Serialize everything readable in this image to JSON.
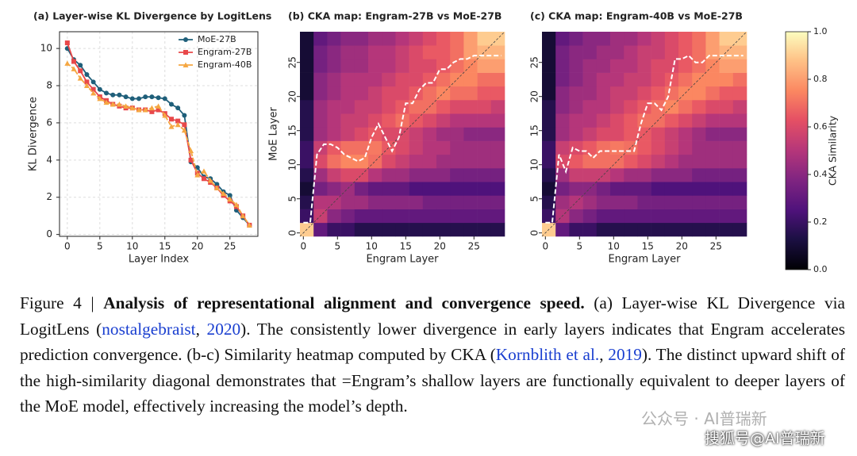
{
  "chart_data": [
    {
      "type": "line",
      "title": "(a) Layer-wise KL Divergence by LogitLens",
      "xlabel": "Layer Index",
      "ylabel": "KL Divergence",
      "x": [
        0,
        1,
        2,
        3,
        4,
        5,
        6,
        7,
        8,
        9,
        10,
        11,
        12,
        13,
        14,
        15,
        16,
        17,
        18,
        19,
        20,
        21,
        22,
        23,
        24,
        25,
        26,
        27,
        28
      ],
      "series": [
        {
          "name": "MoE-27B",
          "color": "#1f5f7a",
          "marker": "circle",
          "values": [
            10.0,
            9.4,
            9.1,
            8.6,
            8.2,
            7.8,
            7.6,
            7.5,
            7.5,
            7.4,
            7.3,
            7.3,
            7.4,
            7.4,
            7.35,
            7.3,
            7.0,
            6.8,
            6.4,
            3.9,
            3.6,
            3.1,
            3.0,
            2.7,
            2.3,
            2.1,
            1.3,
            0.9,
            0.5
          ]
        },
        {
          "name": "Engram-27B",
          "color": "#e8484a",
          "marker": "square",
          "values": [
            10.3,
            9.3,
            8.8,
            8.2,
            7.8,
            7.4,
            7.2,
            7.0,
            6.9,
            6.8,
            6.8,
            6.7,
            6.7,
            6.6,
            6.7,
            6.5,
            6.2,
            6.1,
            5.9,
            4.0,
            3.3,
            3.0,
            2.8,
            2.5,
            2.1,
            1.8,
            1.5,
            1.0,
            0.5
          ]
        },
        {
          "name": "Engram-40B",
          "color": "#f5a742",
          "marker": "triangle",
          "values": [
            9.2,
            8.9,
            8.4,
            8.0,
            7.6,
            7.3,
            7.1,
            7.0,
            7.0,
            6.9,
            6.8,
            6.7,
            6.7,
            6.8,
            6.9,
            6.4,
            5.8,
            5.9,
            5.6,
            4.5,
            3.2,
            3.4,
            2.9,
            2.5,
            2.2,
            1.9,
            1.6,
            1.0,
            0.5
          ]
        }
      ],
      "xlim": [
        -1.2,
        29.3
      ],
      "xticks": [
        0,
        5,
        10,
        15,
        20,
        25
      ],
      "ylim": [
        -0.1,
        10.9
      ],
      "yticks": [
        0,
        2,
        4,
        6,
        8,
        10
      ],
      "grid": true,
      "legend": "upper-right"
    },
    {
      "type": "heatmap",
      "title": "(b) CKA map: Engram-27B vs MoE-27B",
      "xlabel": "Engram Layer",
      "ylabel": "MoE Layer",
      "colormap": "magma",
      "clim": [
        0,
        1
      ],
      "xbins": [
        -0.5,
        1.5,
        3.5,
        5.5,
        7.5,
        9.5,
        11.5,
        13.5,
        15.5,
        17.5,
        19.5,
        21.5,
        23.5,
        25.5,
        27.5,
        29.5
      ],
      "ybins": [
        -0.5,
        1.5,
        3.5,
        5.5,
        7.5,
        9.5,
        11.5,
        13.5,
        15.5,
        17.5,
        19.5,
        21.5,
        23.5,
        25.5,
        27.5,
        29.5
      ],
      "z": [
        [
          0.9,
          0.3,
          0.2,
          0.2,
          0.15,
          0.15,
          0.15,
          0.15,
          0.15,
          0.15,
          0.15,
          0.15,
          0.15,
          0.15,
          0.15
        ],
        [
          0.2,
          0.55,
          0.4,
          0.35,
          0.3,
          0.3,
          0.3,
          0.3,
          0.3,
          0.3,
          0.3,
          0.3,
          0.3,
          0.3,
          0.3
        ],
        [
          0.15,
          0.5,
          0.5,
          0.45,
          0.45,
          0.4,
          0.4,
          0.4,
          0.4,
          0.35,
          0.35,
          0.35,
          0.35,
          0.35,
          0.35
        ],
        [
          0.1,
          0.35,
          0.4,
          0.45,
          0.35,
          0.3,
          0.3,
          0.3,
          0.25,
          0.25,
          0.25,
          0.25,
          0.25,
          0.25,
          0.25
        ],
        [
          0.15,
          0.45,
          0.55,
          0.6,
          0.6,
          0.5,
          0.45,
          0.45,
          0.4,
          0.4,
          0.4,
          0.35,
          0.35,
          0.35,
          0.35
        ],
        [
          0.2,
          0.6,
          0.7,
          0.75,
          0.75,
          0.7,
          0.6,
          0.55,
          0.5,
          0.5,
          0.45,
          0.45,
          0.45,
          0.45,
          0.45
        ],
        [
          0.2,
          0.55,
          0.65,
          0.7,
          0.7,
          0.72,
          0.65,
          0.6,
          0.55,
          0.5,
          0.5,
          0.45,
          0.45,
          0.45,
          0.45
        ],
        [
          0.15,
          0.45,
          0.5,
          0.55,
          0.6,
          0.65,
          0.6,
          0.6,
          0.55,
          0.5,
          0.45,
          0.45,
          0.4,
          0.4,
          0.4
        ],
        [
          0.15,
          0.45,
          0.5,
          0.55,
          0.55,
          0.6,
          0.65,
          0.7,
          0.65,
          0.6,
          0.55,
          0.5,
          0.5,
          0.5,
          0.5
        ],
        [
          0.15,
          0.45,
          0.5,
          0.5,
          0.55,
          0.55,
          0.6,
          0.65,
          0.7,
          0.7,
          0.65,
          0.6,
          0.6,
          0.6,
          0.55
        ],
        [
          0.1,
          0.4,
          0.45,
          0.5,
          0.5,
          0.55,
          0.6,
          0.6,
          0.65,
          0.7,
          0.75,
          0.7,
          0.7,
          0.65,
          0.65
        ],
        [
          0.1,
          0.4,
          0.45,
          0.5,
          0.5,
          0.5,
          0.55,
          0.6,
          0.6,
          0.65,
          0.7,
          0.75,
          0.75,
          0.7,
          0.7
        ],
        [
          0.1,
          0.35,
          0.4,
          0.45,
          0.45,
          0.5,
          0.5,
          0.55,
          0.6,
          0.6,
          0.65,
          0.7,
          0.75,
          0.8,
          0.8
        ],
        [
          0.1,
          0.35,
          0.4,
          0.45,
          0.45,
          0.5,
          0.5,
          0.55,
          0.6,
          0.65,
          0.65,
          0.7,
          0.8,
          0.85,
          0.85
        ],
        [
          0.1,
          0.3,
          0.35,
          0.4,
          0.4,
          0.45,
          0.45,
          0.5,
          0.55,
          0.6,
          0.65,
          0.7,
          0.8,
          0.9,
          0.9
        ]
      ],
      "overlay": {
        "x": [
          0,
          1,
          2,
          3,
          4,
          5,
          6,
          7,
          8,
          9,
          10,
          11,
          12,
          13,
          14,
          15,
          16,
          17,
          18,
          19,
          20,
          21,
          22,
          23,
          24,
          25,
          26,
          27,
          28,
          29
        ],
        "values": [
          1.5,
          1.5,
          11.5,
          13,
          13,
          12.5,
          11.5,
          11,
          10.5,
          11,
          14,
          16,
          14,
          12,
          14,
          19,
          19,
          21,
          22,
          22,
          24,
          24,
          25,
          25.5,
          25.5,
          26,
          26,
          26,
          26,
          26
        ]
      },
      "xlim": [
        -0.5,
        29.5
      ],
      "xticks": [
        0,
        5,
        10,
        15,
        20,
        25
      ],
      "ylim": [
        -0.5,
        29.5
      ],
      "yticks": [
        0,
        5,
        10,
        15,
        20,
        25
      ]
    },
    {
      "type": "heatmap",
      "title": "(c) CKA map: Engram-40B vs MoE-27B",
      "xlabel": "Engram Layer",
      "colormap": "magma",
      "clim": [
        0,
        1
      ],
      "xbins": [
        -0.5,
        1.5,
        3.5,
        5.5,
        7.5,
        9.5,
        11.5,
        13.5,
        15.5,
        17.5,
        19.5,
        21.5,
        23.5,
        25.5,
        27.5,
        29.5
      ],
      "ybins": [
        -0.5,
        1.5,
        3.5,
        5.5,
        7.5,
        9.5,
        11.5,
        13.5,
        15.5,
        17.5,
        19.5,
        21.5,
        23.5,
        25.5,
        27.5,
        29.5
      ],
      "z": [
        [
          0.9,
          0.3,
          0.2,
          0.2,
          0.15,
          0.15,
          0.15,
          0.15,
          0.15,
          0.15,
          0.15,
          0.15,
          0.15,
          0.15,
          0.15
        ],
        [
          0.2,
          0.5,
          0.4,
          0.35,
          0.3,
          0.3,
          0.3,
          0.3,
          0.3,
          0.3,
          0.3,
          0.3,
          0.3,
          0.3,
          0.3
        ],
        [
          0.15,
          0.45,
          0.5,
          0.45,
          0.4,
          0.4,
          0.4,
          0.35,
          0.35,
          0.35,
          0.35,
          0.35,
          0.35,
          0.35,
          0.35
        ],
        [
          0.1,
          0.35,
          0.4,
          0.4,
          0.35,
          0.3,
          0.3,
          0.3,
          0.25,
          0.25,
          0.25,
          0.25,
          0.25,
          0.25,
          0.25
        ],
        [
          0.15,
          0.45,
          0.55,
          0.55,
          0.55,
          0.5,
          0.45,
          0.45,
          0.4,
          0.4,
          0.4,
          0.35,
          0.35,
          0.35,
          0.35
        ],
        [
          0.2,
          0.6,
          0.65,
          0.7,
          0.7,
          0.7,
          0.65,
          0.6,
          0.55,
          0.5,
          0.45,
          0.45,
          0.45,
          0.45,
          0.45
        ],
        [
          0.2,
          0.55,
          0.6,
          0.65,
          0.7,
          0.72,
          0.7,
          0.65,
          0.6,
          0.55,
          0.5,
          0.45,
          0.45,
          0.45,
          0.45
        ],
        [
          0.15,
          0.45,
          0.5,
          0.55,
          0.6,
          0.6,
          0.65,
          0.65,
          0.6,
          0.55,
          0.5,
          0.45,
          0.4,
          0.4,
          0.4
        ],
        [
          0.15,
          0.45,
          0.5,
          0.5,
          0.55,
          0.6,
          0.65,
          0.7,
          0.7,
          0.65,
          0.6,
          0.55,
          0.5,
          0.5,
          0.5
        ],
        [
          0.15,
          0.4,
          0.45,
          0.5,
          0.5,
          0.55,
          0.6,
          0.65,
          0.7,
          0.75,
          0.7,
          0.65,
          0.6,
          0.6,
          0.55
        ],
        [
          0.1,
          0.4,
          0.45,
          0.45,
          0.5,
          0.55,
          0.55,
          0.6,
          0.65,
          0.7,
          0.75,
          0.75,
          0.7,
          0.65,
          0.65
        ],
        [
          0.1,
          0.35,
          0.4,
          0.45,
          0.5,
          0.5,
          0.55,
          0.55,
          0.6,
          0.65,
          0.7,
          0.75,
          0.75,
          0.75,
          0.7
        ],
        [
          0.1,
          0.35,
          0.4,
          0.45,
          0.45,
          0.5,
          0.5,
          0.55,
          0.6,
          0.6,
          0.65,
          0.7,
          0.75,
          0.8,
          0.8
        ],
        [
          0.1,
          0.35,
          0.4,
          0.4,
          0.45,
          0.45,
          0.5,
          0.55,
          0.55,
          0.6,
          0.65,
          0.7,
          0.8,
          0.85,
          0.85
        ],
        [
          0.1,
          0.3,
          0.35,
          0.4,
          0.4,
          0.45,
          0.45,
          0.5,
          0.55,
          0.6,
          0.65,
          0.7,
          0.8,
          0.9,
          0.9
        ]
      ],
      "overlay": {
        "x": [
          0,
          1,
          2,
          3,
          4,
          5,
          6,
          7,
          8,
          9,
          10,
          11,
          12,
          13,
          14,
          15,
          16,
          17,
          18,
          19,
          20,
          21,
          22,
          23,
          24,
          25,
          26,
          27,
          28,
          29
        ],
        "values": [
          1.5,
          1.5,
          11.5,
          9,
          12.5,
          12,
          12,
          11,
          12,
          12,
          12,
          12,
          12,
          12,
          16,
          19,
          19,
          18,
          20,
          25.5,
          25.5,
          26,
          25,
          25,
          26,
          26,
          26,
          26,
          26,
          26
        ]
      },
      "xlim": [
        -0.5,
        29.5
      ],
      "xticks": [
        0,
        5,
        10,
        15,
        20,
        25
      ],
      "ylim": [
        -0.5,
        29.5
      ],
      "yticks": [
        0,
        5,
        10,
        15,
        20,
        25
      ],
      "colorbar": {
        "label": "CKA Similarity",
        "ticks": [
          {
            "value": 0,
            "label": "0.0"
          },
          {
            "value": 0.2,
            "label": "0.2"
          },
          {
            "value": 0.4,
            "label": "0.4"
          },
          {
            "value": 0.6,
            "label": "0.6"
          },
          {
            "value": 0.8,
            "label": "0.8"
          },
          {
            "value": 1,
            "label": "1.0"
          }
        ]
      }
    }
  ],
  "caption": {
    "parts": [
      "Figure 4 | ",
      "Analysis of representational alignment and convergence speed.",
      " (a) Layer-wise KL Divergence via LogitLens (",
      "nostalgebraist",
      ", ",
      "2020",
      "). The consistently lower divergence in early layers indicates that Engram accelerates prediction convergence. (b-c) Similarity heatmap computed by CKA (",
      "Kornblith et al.",
      ", ",
      "2019",
      "). The distinct upward shift of the high-similarity diagonal demonstrates that =Engram’s shallow layers are functionally equivalent to deeper layers of the MoE model, effectively increasing the model’s depth."
    ]
  },
  "watermark": [
    "公众号 · AI普瑞新",
    "搜狐号@AI普瑞新"
  ]
}
